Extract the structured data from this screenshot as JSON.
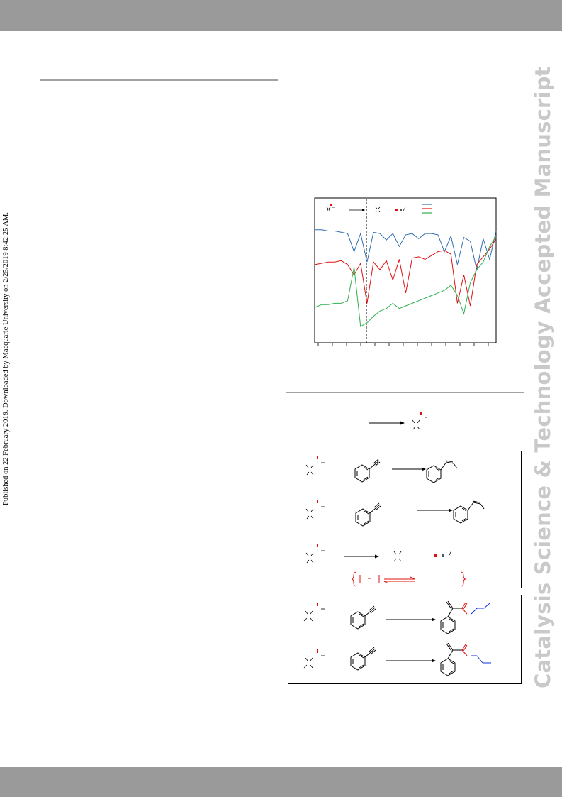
{
  "page": {
    "publication_note": "Published on 22 February 2019. Downloaded by Macquarie University on 2/25/2019 8:42:25 AM.",
    "watermark": "Catalysis Science & Technology Accepted Manuscript"
  },
  "colors": {
    "header_bar": "#9a9a9a",
    "footer_bar": "#9a9a9a",
    "watermark": "#c9c9c9",
    "series_blue": "#2e6eb0",
    "series_red": "#e01010",
    "series_green": "#2fb050",
    "highlight_red": "#e01010",
    "highlight_blue": "#1030e0"
  },
  "chart_data": {
    "type": "line",
    "title": "",
    "xlabel": "",
    "ylabel": "",
    "grid": false,
    "legend": "top-right",
    "divider": "dashed vertical line",
    "series": [
      {
        "color": "#2e6eb0",
        "values": [
          0.87,
          0.87,
          0.86,
          0.86,
          0.85,
          0.84,
          0.7,
          0.84,
          0.62,
          0.85,
          0.84,
          0.79,
          0.84,
          0.74,
          0.83,
          0.84,
          0.8,
          0.84,
          0.84,
          0.83,
          0.7,
          0.82,
          0.6,
          0.81,
          0.78,
          0.56,
          0.8,
          0.64,
          0.86
        ]
      },
      {
        "color": "#e01010",
        "values": [
          0.6,
          0.61,
          0.62,
          0.62,
          0.63,
          0.6,
          0.52,
          0.61,
          0.3,
          0.62,
          0.56,
          0.63,
          0.48,
          0.64,
          0.38,
          0.65,
          0.66,
          0.64,
          0.67,
          0.7,
          0.71,
          0.68,
          0.3,
          0.52,
          0.28,
          0.6,
          0.66,
          0.72,
          0.8
        ]
      },
      {
        "color": "#2fb050",
        "values": [
          0.27,
          0.29,
          0.29,
          0.3,
          0.3,
          0.32,
          0.58,
          0.12,
          0.15,
          0.2,
          0.24,
          0.26,
          0.3,
          0.26,
          0.28,
          0.3,
          0.32,
          0.34,
          0.36,
          0.38,
          0.4,
          0.44,
          0.36,
          0.22,
          0.46,
          0.56,
          0.62,
          0.74,
          0.82
        ]
      }
    ]
  }
}
